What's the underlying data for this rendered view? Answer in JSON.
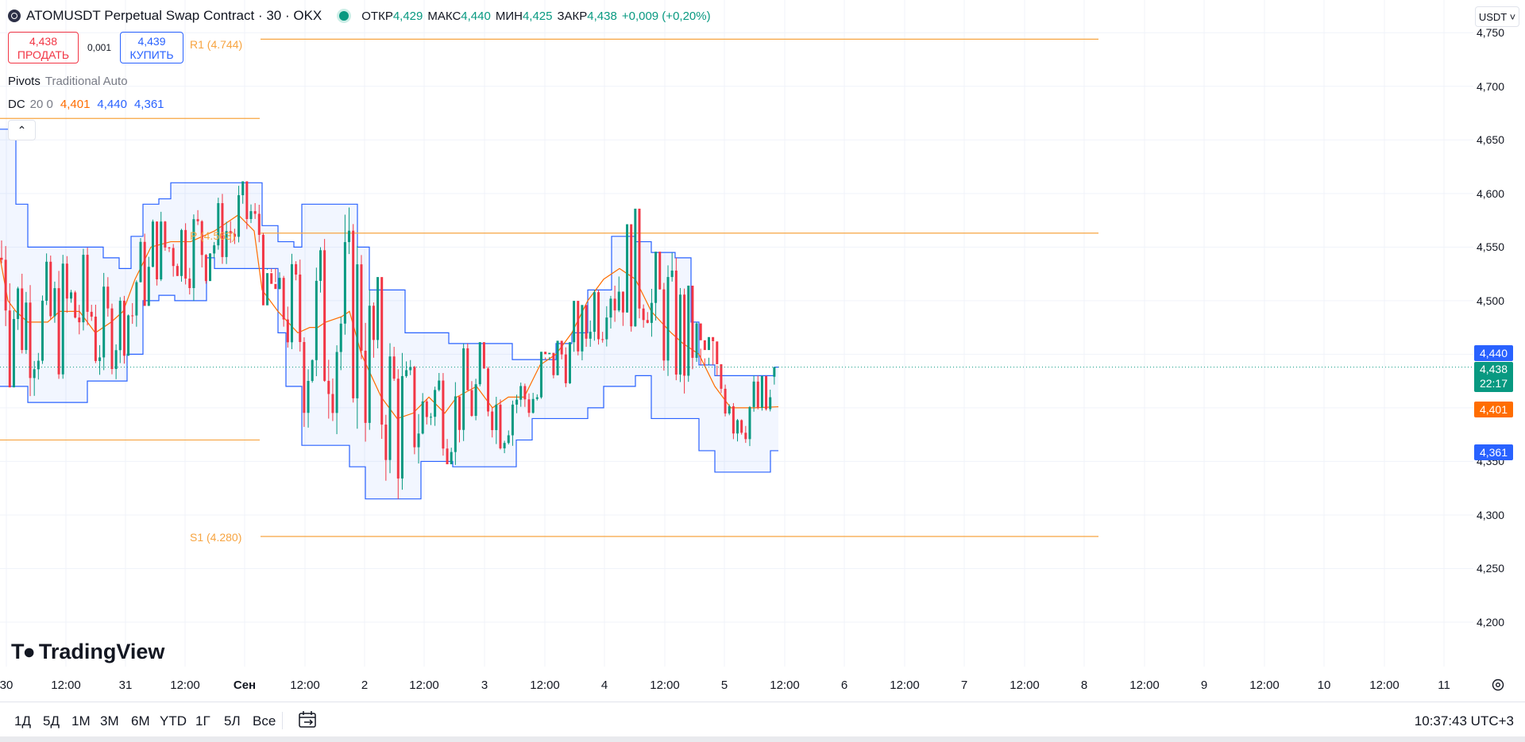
{
  "header": {
    "symbol_title": "ATOMUSDT Perpetual Swap Contract · 30 · OKX",
    "ohlc": [
      {
        "label": "ОТКР",
        "value": "4,429"
      },
      {
        "label": "МАКС",
        "value": "4,440"
      },
      {
        "label": "МИН",
        "value": "4,425"
      },
      {
        "label": "ЗАКР",
        "value": "4,438"
      }
    ],
    "change": "+0,009 (+0,20%)",
    "currency": "USDT"
  },
  "trade": {
    "sell_price": "4,438",
    "sell_label": "ПРОДАТЬ",
    "spread": "0,001",
    "buy_price": "4,439",
    "buy_label": "КУПИТЬ"
  },
  "indicators": {
    "pivots_name": "Pivots",
    "pivots_params": "Traditional Auto",
    "dc_name": "DC",
    "dc_params": "20 0",
    "dc_basis": "4,401",
    "dc_upper": "4,440",
    "dc_lower": "4,361"
  },
  "pivot_labels": {
    "r1": "R1 (4.744)",
    "p": "P (4.563)",
    "s1": "S1 (4.280)"
  },
  "price_axis": {
    "ticks": [
      "4,750",
      "4,700",
      "4,650",
      "4,600",
      "4,550",
      "4,500",
      "4,450",
      "4,400",
      "4,350",
      "4,300",
      "4,250",
      "4,200"
    ],
    "tags": {
      "upper": "4,440",
      "last": "4,438",
      "countdown": "22:17",
      "basis": "4,401",
      "lower": "4,361"
    }
  },
  "time_axis": [
    "30",
    "12:00",
    "31",
    "12:00",
    "Сен",
    "12:00",
    "2",
    "12:00",
    "3",
    "12:00",
    "4",
    "12:00",
    "5",
    "12:00",
    "6",
    "12:00",
    "7",
    "12:00",
    "8",
    "12:00",
    "9",
    "12:00",
    "10",
    "12:00",
    "11"
  ],
  "bottom_bar": {
    "ranges": [
      "1Д",
      "5Д",
      "1М",
      "3М",
      "6М",
      "YTD",
      "1Г",
      "5Л",
      "Все"
    ],
    "clock": "10:37:43 UTC+3"
  },
  "branding": {
    "logo_text": "TradingView"
  },
  "colors": {
    "up": "#089981",
    "down": "#f23645",
    "dc_band": "#2962ff",
    "dc_basis": "#ff6d00",
    "pivot": "#f7a440",
    "accent": "#2962ff"
  },
  "chart_data": {
    "type": "candlestick",
    "symbol": "ATOMUSDT",
    "timeframe": "30",
    "y_range": [
      4.19,
      4.755
    ],
    "last_price": 4.438,
    "pivots": {
      "r1": 4.744,
      "p": 4.563,
      "s1": 4.28,
      "prev_r1": 4.67,
      "prev_s1": 4.37
    },
    "donchian": {
      "upper_path": [
        [
          0,
          4.66
        ],
        [
          10,
          4.66
        ],
        [
          20,
          4.59
        ],
        [
          35,
          4.55
        ],
        [
          60,
          4.55
        ],
        [
          75,
          4.55
        ],
        [
          100,
          4.55
        ],
        [
          130,
          4.54
        ],
        [
          150,
          4.53
        ],
        [
          165,
          4.56
        ],
        [
          180,
          4.59
        ],
        [
          200,
          4.595
        ],
        [
          215,
          4.61
        ],
        [
          240,
          4.61
        ],
        [
          260,
          4.61
        ],
        [
          285,
          4.61
        ],
        [
          320,
          4.61
        ],
        [
          330,
          4.57
        ],
        [
          350,
          4.555
        ],
        [
          370,
          4.55
        ],
        [
          380,
          4.59
        ],
        [
          400,
          4.59
        ],
        [
          440,
          4.59
        ],
        [
          450,
          4.55
        ],
        [
          465,
          4.51
        ],
        [
          490,
          4.51
        ],
        [
          510,
          4.47
        ],
        [
          530,
          4.47
        ],
        [
          560,
          4.47
        ],
        [
          565,
          4.46
        ],
        [
          600,
          4.46
        ],
        [
          630,
          4.46
        ],
        [
          645,
          4.445
        ],
        [
          680,
          4.445
        ],
        [
          700,
          4.46
        ],
        [
          720,
          4.47
        ],
        [
          740,
          4.51
        ],
        [
          770,
          4.56
        ],
        [
          790,
          4.56
        ],
        [
          800,
          4.555
        ],
        [
          820,
          4.545
        ],
        [
          850,
          4.54
        ],
        [
          870,
          4.48
        ],
        [
          880,
          4.44
        ],
        [
          900,
          4.43
        ],
        [
          950,
          4.43
        ],
        [
          975,
          4.438
        ],
        [
          980,
          4.438
        ]
      ],
      "lower_path": [
        [
          0,
          4.42
        ],
        [
          20,
          4.42
        ],
        [
          35,
          4.405
        ],
        [
          60,
          4.405
        ],
        [
          100,
          4.405
        ],
        [
          110,
          4.425
        ],
        [
          150,
          4.425
        ],
        [
          160,
          4.45
        ],
        [
          180,
          4.5
        ],
        [
          200,
          4.505
        ],
        [
          220,
          4.5
        ],
        [
          240,
          4.5
        ],
        [
          260,
          4.54
        ],
        [
          270,
          4.53
        ],
        [
          330,
          4.53
        ],
        [
          350,
          4.47
        ],
        [
          360,
          4.42
        ],
        [
          380,
          4.365
        ],
        [
          420,
          4.365
        ],
        [
          440,
          4.345
        ],
        [
          460,
          4.315
        ],
        [
          510,
          4.315
        ],
        [
          530,
          4.35
        ],
        [
          560,
          4.35
        ],
        [
          570,
          4.345
        ],
        [
          620,
          4.345
        ],
        [
          650,
          4.37
        ],
        [
          660,
          4.37
        ],
        [
          670,
          4.39
        ],
        [
          710,
          4.39
        ],
        [
          740,
          4.4
        ],
        [
          760,
          4.42
        ],
        [
          800,
          4.43
        ],
        [
          810,
          4.43
        ],
        [
          820,
          4.39
        ],
        [
          860,
          4.39
        ],
        [
          880,
          4.36
        ],
        [
          900,
          4.34
        ],
        [
          960,
          4.34
        ],
        [
          970,
          4.36
        ],
        [
          980,
          4.36
        ]
      ],
      "basis_path": [
        [
          0,
          4.54
        ],
        [
          10,
          4.5
        ],
        [
          20,
          4.49
        ],
        [
          35,
          4.48
        ],
        [
          60,
          4.48
        ],
        [
          75,
          4.49
        ],
        [
          100,
          4.49
        ],
        [
          120,
          4.47
        ],
        [
          140,
          4.48
        ],
        [
          155,
          4.49
        ],
        [
          170,
          4.52
        ],
        [
          190,
          4.55
        ],
        [
          215,
          4.555
        ],
        [
          240,
          4.555
        ],
        [
          270,
          4.565
        ],
        [
          300,
          4.58
        ],
        [
          320,
          4.565
        ],
        [
          330,
          4.51
        ],
        [
          350,
          4.49
        ],
        [
          375,
          4.47
        ],
        [
          390,
          4.475
        ],
        [
          400,
          4.475
        ],
        [
          410,
          4.48
        ],
        [
          430,
          4.485
        ],
        [
          440,
          4.49
        ],
        [
          455,
          4.45
        ],
        [
          480,
          4.41
        ],
        [
          500,
          4.39
        ],
        [
          520,
          4.395
        ],
        [
          540,
          4.41
        ],
        [
          560,
          4.395
        ],
        [
          575,
          4.41
        ],
        [
          600,
          4.42
        ],
        [
          620,
          4.4
        ],
        [
          640,
          4.41
        ],
        [
          660,
          4.41
        ],
        [
          680,
          4.44
        ],
        [
          700,
          4.45
        ],
        [
          720,
          4.47
        ],
        [
          740,
          4.5
        ],
        [
          760,
          4.52
        ],
        [
          780,
          4.53
        ],
        [
          800,
          4.52
        ],
        [
          820,
          4.49
        ],
        [
          845,
          4.47
        ],
        [
          860,
          4.46
        ],
        [
          880,
          4.45
        ],
        [
          900,
          4.42
        ],
        [
          920,
          4.4
        ],
        [
          950,
          4.4
        ],
        [
          980,
          4.401
        ]
      ]
    },
    "candles_count": 190,
    "x_labels": [
      "30",
      "31",
      "Сен",
      "2",
      "3",
      "4",
      "5",
      "6",
      "7",
      "8",
      "9",
      "10",
      "11"
    ]
  }
}
